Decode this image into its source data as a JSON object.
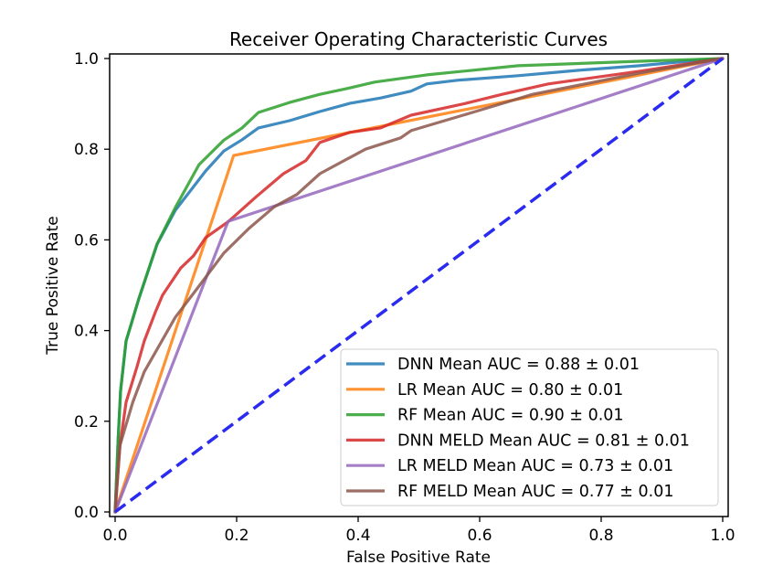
{
  "chart_data": {
    "type": "line",
    "title": "Receiver Operating Characteristic Curves",
    "xlabel": "False Positive Rate",
    "ylabel": "True Positive Rate",
    "xlim": [
      -0.01,
      1.01
    ],
    "ylim": [
      -0.01,
      1.01
    ],
    "xticks": [
      0.0,
      0.2,
      0.4,
      0.6,
      0.8,
      1.0
    ],
    "yticks": [
      0.0,
      0.2,
      0.4,
      0.6,
      0.8,
      1.0
    ],
    "xtick_labels": [
      "0.0",
      "0.2",
      "0.4",
      "0.6",
      "0.8",
      "1.0"
    ],
    "ytick_labels": [
      "0.0",
      "0.2",
      "0.4",
      "0.6",
      "0.8",
      "1.0"
    ],
    "grid": false,
    "legend_position": "lower-right",
    "series": [
      {
        "name": "DNN Mean AUC = 0.88 ± 0.01",
        "color": "#1f77b4",
        "x": [
          0.0,
          0.005,
          0.009,
          0.018,
          0.039,
          0.069,
          0.099,
          0.149,
          0.179,
          0.209,
          0.236,
          0.287,
          0.337,
          0.386,
          0.437,
          0.487,
          0.513,
          0.563,
          0.663,
          0.763,
          0.863,
          0.95,
          1.0
        ],
        "y": [
          0.0,
          0.16,
          0.268,
          0.377,
          0.47,
          0.59,
          0.665,
          0.752,
          0.796,
          0.821,
          0.847,
          0.863,
          0.883,
          0.901,
          0.913,
          0.928,
          0.944,
          0.952,
          0.962,
          0.974,
          0.984,
          0.995,
          1.0
        ]
      },
      {
        "name": "LR Mean AUC = 0.80 ± 0.01",
        "color": "#ff7f0e",
        "x": [
          0.0,
          0.195,
          1.0
        ],
        "y": [
          0.0,
          0.786,
          1.0
        ]
      },
      {
        "name": "RF Mean AUC = 0.90 ± 0.01",
        "color": "#2ca02c",
        "x": [
          0.0,
          0.005,
          0.009,
          0.018,
          0.039,
          0.069,
          0.099,
          0.138,
          0.179,
          0.209,
          0.236,
          0.287,
          0.337,
          0.386,
          0.427,
          0.513,
          0.663,
          0.863,
          1.0
        ],
        "y": [
          0.0,
          0.161,
          0.268,
          0.377,
          0.47,
          0.591,
          0.671,
          0.766,
          0.82,
          0.847,
          0.881,
          0.903,
          0.921,
          0.935,
          0.948,
          0.964,
          0.984,
          0.994,
          1.0
        ]
      },
      {
        "name": "DNN MELD Mean AUC = 0.81 ± 0.01",
        "color": "#d62728",
        "x": [
          0.0,
          0.008,
          0.018,
          0.036,
          0.048,
          0.066,
          0.078,
          0.108,
          0.129,
          0.149,
          0.186,
          0.232,
          0.277,
          0.314,
          0.337,
          0.386,
          0.437,
          0.487,
          0.577,
          0.637,
          0.713,
          0.863,
          1.0
        ],
        "y": [
          0.0,
          0.147,
          0.242,
          0.32,
          0.377,
          0.44,
          0.478,
          0.538,
          0.565,
          0.605,
          0.64,
          0.695,
          0.746,
          0.775,
          0.815,
          0.837,
          0.847,
          0.875,
          0.901,
          0.921,
          0.944,
          0.972,
          1.0
        ]
      },
      {
        "name": "LR MELD Mean AUC = 0.73 ± 0.01",
        "color": "#9467bd",
        "x": [
          0.0,
          0.186,
          1.0
        ],
        "y": [
          0.0,
          0.641,
          1.0
        ]
      },
      {
        "name": "RF MELD Mean AUC = 0.77 ± 0.01",
        "color": "#8c564b",
        "x": [
          0.0,
          0.008,
          0.029,
          0.048,
          0.099,
          0.138,
          0.179,
          0.22,
          0.262,
          0.299,
          0.337,
          0.412,
          0.47,
          0.487,
          0.588,
          0.687,
          0.863,
          1.0
        ],
        "y": [
          0.0,
          0.147,
          0.242,
          0.309,
          0.429,
          0.498,
          0.571,
          0.625,
          0.673,
          0.7,
          0.746,
          0.8,
          0.825,
          0.841,
          0.881,
          0.921,
          0.968,
          1.0
        ]
      }
    ],
    "reference_line": {
      "name": "chance",
      "x": [
        0.0,
        1.0
      ],
      "y": [
        0.0,
        1.0
      ],
      "style": "dashed",
      "color": "#2a2af0"
    }
  }
}
